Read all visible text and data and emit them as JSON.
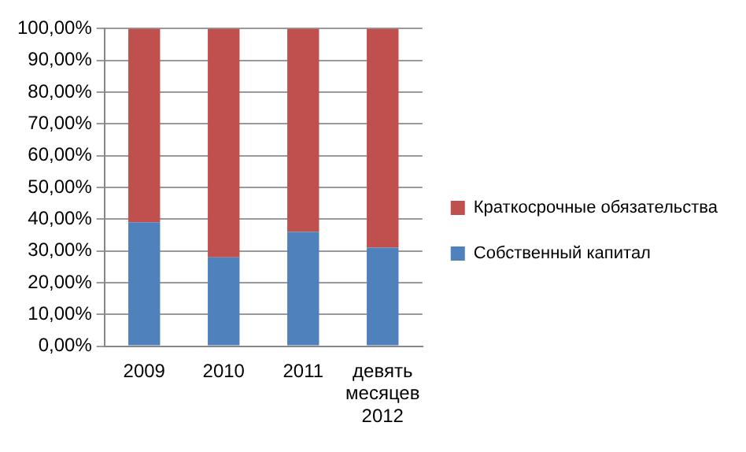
{
  "chart_data": {
    "type": "bar",
    "stacked": true,
    "categories": [
      "2009",
      "2010",
      "2011",
      "девять месяцев 2012"
    ],
    "series": [
      {
        "name": "Собственный капитал",
        "color": "#4f81bd",
        "values": [
          39,
          28,
          36,
          31
        ]
      },
      {
        "name": "Краткосрочные обязательства",
        "color": "#c0504d",
        "values": [
          61,
          72,
          64,
          69
        ]
      }
    ],
    "ylim": [
      0,
      100
    ],
    "yticks": [
      {
        "value": 0,
        "label": "0,00%"
      },
      {
        "value": 10,
        "label": "10,00%"
      },
      {
        "value": 20,
        "label": "20,00%"
      },
      {
        "value": 30,
        "label": "30,00%"
      },
      {
        "value": 40,
        "label": "40,00%"
      },
      {
        "value": 50,
        "label": "50,00%"
      },
      {
        "value": 60,
        "label": "60,00%"
      },
      {
        "value": 70,
        "label": "70,00%"
      },
      {
        "value": 80,
        "label": "80,00%"
      },
      {
        "value": 90,
        "label": "90,00%"
      },
      {
        "value": 100,
        "label": "100,00%"
      }
    ],
    "grid": "y",
    "legend": "right"
  }
}
